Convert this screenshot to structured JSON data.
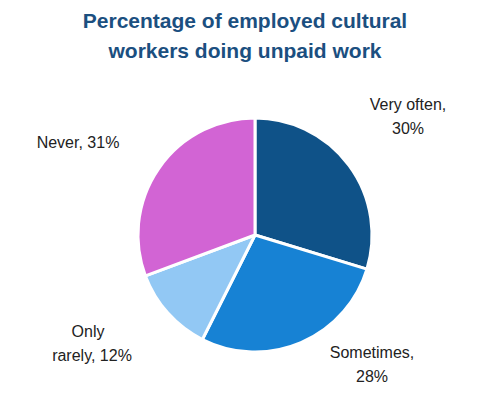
{
  "chart_data": {
    "type": "pie",
    "title": "Percentage of employed cultural workers doing unpaid work",
    "categories": [
      "Very often,",
      "Sometimes,",
      "Only rarely,",
      "Never,"
    ],
    "values": [
      30,
      28,
      12,
      31
    ],
    "value_labels": [
      "30%",
      "28%",
      "12%",
      "31%"
    ],
    "colors": [
      "#0f5288",
      "#1782d4",
      "#92c8f4",
      "#d264d4"
    ],
    "data_labels": true
  }
}
